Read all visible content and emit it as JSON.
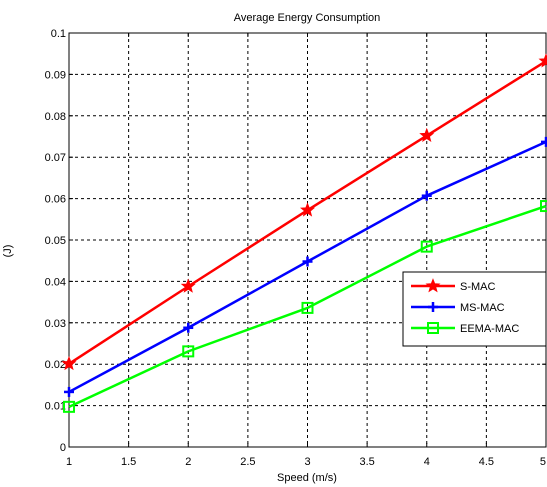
{
  "chart_data": {
    "type": "line",
    "title": "Average Energy Consumption",
    "xlabel": "Speed (m/s)",
    "ylabel": "(J)",
    "x": [
      1,
      2,
      3,
      4,
      5
    ],
    "xlim": [
      1,
      5
    ],
    "ylim": [
      0,
      0.1
    ],
    "x_ticks": [
      1,
      1.5,
      2,
      2.5,
      3,
      3.5,
      4,
      4.5,
      5
    ],
    "x_tick_labels": [
      "1",
      "1.5",
      "2",
      "2.5",
      "3",
      "3.5",
      "4",
      "4.5",
      "5"
    ],
    "y_ticks": [
      0,
      0.01,
      0.02,
      0.03,
      0.04,
      0.05,
      0.06,
      0.07,
      0.08,
      0.09,
      0.1
    ],
    "y_tick_labels": [
      "0",
      "0.01",
      "0.02",
      "0.03",
      "0.04",
      "0.05",
      "0.06",
      "0.07",
      "0.08",
      "0.09",
      "0.1"
    ],
    "grid": true,
    "grid_style": "dashed",
    "legend_position": "center-right",
    "series": [
      {
        "name": "S-MAC",
        "color": "#ff0000",
        "marker": "star",
        "values": [
          0.0201,
          0.0388,
          0.0572,
          0.0752,
          0.0932
        ]
      },
      {
        "name": "MS-MAC",
        "color": "#0000ff",
        "marker": "plus",
        "values": [
          0.0133,
          0.0288,
          0.0448,
          0.0607,
          0.0737
        ]
      },
      {
        "name": "EEMA-MAC",
        "color": "#00ff00",
        "marker": "square",
        "values": [
          0.0097,
          0.0231,
          0.0336,
          0.0484,
          0.0582
        ]
      }
    ]
  }
}
